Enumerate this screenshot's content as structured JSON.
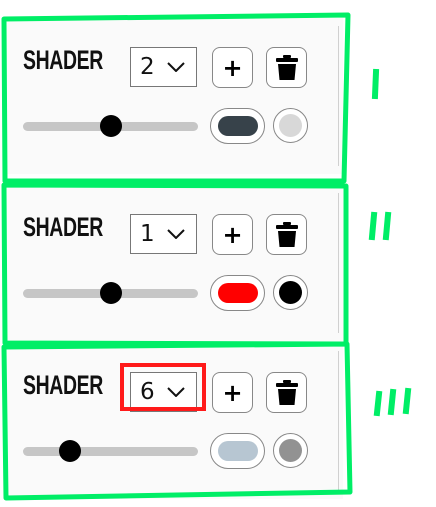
{
  "panels": [
    {
      "title": "SHADER",
      "selected": "2",
      "add_label": "+",
      "slider_value": 0.5,
      "pill_color": "#37424a",
      "dot_color": "#d8d8d8",
      "marker": "'"
    },
    {
      "title": "SHADER",
      "selected": "1",
      "add_label": "+",
      "slider_value": 0.5,
      "pill_color": "#ff0000",
      "dot_color": "#000000",
      "marker": "''"
    },
    {
      "title": "SHADER",
      "selected": "6",
      "add_label": "+",
      "slider_value": 0.27,
      "pill_color": "#b7c6d2",
      "dot_color": "#929292",
      "marker": "'''"
    }
  ],
  "colors": {
    "annotation_green": "#00ee66",
    "highlight_red": "#ff1a1a"
  },
  "icons": {
    "dropdown": "chevron-down-icon",
    "delete": "trash-icon"
  }
}
